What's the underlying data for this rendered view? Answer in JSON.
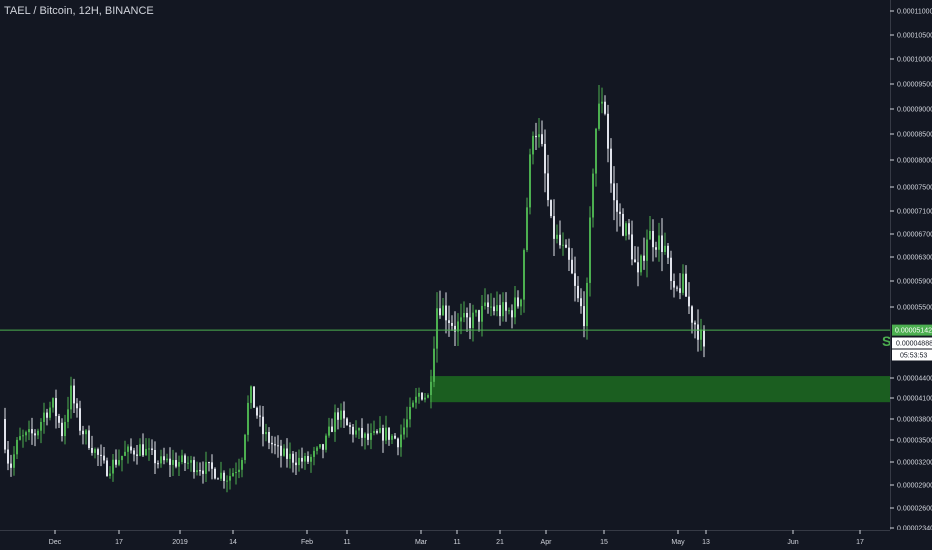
{
  "title": "TAEL / Bitcoin, 12H, BINANCE",
  "colors": {
    "background": "#131722",
    "up": "#4caf50",
    "down": "#e0e3eb",
    "support_line": "#4caf50",
    "zone": "#1b5e20",
    "axis_text": "#d1d4dc",
    "axis_line": "#363a45"
  },
  "chart_data": {
    "type": "candlestick",
    "x_axis": {
      "tick_labels": [
        "Dec",
        "17",
        "2019",
        "14",
        "Feb",
        "11",
        "Mar",
        "11",
        "21",
        "Apr",
        "15",
        "May",
        "13",
        "Jun",
        "17"
      ]
    },
    "y_axis": {
      "range": [
        2.28e-05,
        0.00011
      ],
      "tick_labels": [
        "0.00011000",
        "0.00010500",
        "0.00010000",
        "0.00009500",
        "0.00009000",
        "0.00008500",
        "0.00008000",
        "0.00007500",
        "0.00007100",
        "0.00006700",
        "0.00006300",
        "0.00005900",
        "0.00005500",
        "0.00004400",
        "0.00004100",
        "0.00003800",
        "0.00003500",
        "0.00003200",
        "0.00002900",
        "0.00002600",
        "0.00002340"
      ]
    },
    "support_line": {
      "value": 5.142e-05,
      "label": "0.00005142",
      "marker": "S"
    },
    "current_price": {
      "value": 4.888e-05,
      "label": "0.00004888"
    },
    "countdown": "05:53:53",
    "zone": {
      "low": 4.04e-05,
      "high": 4.43e-05
    },
    "price_keyframes": [
      [
        0.0,
        3.8e-05
      ],
      [
        0.01,
        3.1e-05
      ],
      [
        0.02,
        3.5e-05
      ],
      [
        0.04,
        3.6e-05
      ],
      [
        0.05,
        3.9e-05
      ],
      [
        0.06,
        4e-05
      ],
      [
        0.07,
        3.6e-05
      ],
      [
        0.08,
        4.2e-05
      ],
      [
        0.09,
        3.7e-05
      ],
      [
        0.1,
        3.5e-05
      ],
      [
        0.12,
        3.1e-05
      ],
      [
        0.14,
        3.3e-05
      ],
      [
        0.16,
        3.4e-05
      ],
      [
        0.18,
        3.2e-05
      ],
      [
        0.21,
        3.2e-05
      ],
      [
        0.24,
        3.1e-05
      ],
      [
        0.26,
        3e-05
      ],
      [
        0.275,
        3.2e-05
      ],
      [
        0.285,
        4.2e-05
      ],
      [
        0.3,
        3.6e-05
      ],
      [
        0.32,
        3.3e-05
      ],
      [
        0.35,
        3.2e-05
      ],
      [
        0.37,
        3.4e-05
      ],
      [
        0.385,
        3.9e-05
      ],
      [
        0.395,
        3.7e-05
      ],
      [
        0.42,
        3.5e-05
      ],
      [
        0.44,
        3.6e-05
      ],
      [
        0.455,
        3.5e-05
      ],
      [
        0.47,
        3.9e-05
      ],
      [
        0.48,
        4.2e-05
      ],
      [
        0.49,
        4.1e-05
      ],
      [
        0.5,
        5.6e-05
      ],
      [
        0.51,
        5.4e-05
      ],
      [
        0.52,
        5.2e-05
      ],
      [
        0.54,
        5.3e-05
      ],
      [
        0.56,
        5.5e-05
      ],
      [
        0.58,
        5.4e-05
      ],
      [
        0.595,
        5.6e-05
      ],
      [
        0.61,
        8.8e-05
      ],
      [
        0.62,
        8.1e-05
      ],
      [
        0.63,
        6.8e-05
      ],
      [
        0.65,
        6.2e-05
      ],
      [
        0.66,
        5.6e-05
      ],
      [
        0.67,
        5.3e-05
      ],
      [
        0.68,
        8.5e-05
      ],
      [
        0.69,
        9.4e-05
      ],
      [
        0.7,
        7.3e-05
      ],
      [
        0.72,
        6.6e-05
      ],
      [
        0.73,
        5.9e-05
      ],
      [
        0.74,
        6.7e-05
      ],
      [
        0.76,
        6.5e-05
      ],
      [
        0.77,
        5.6e-05
      ],
      [
        0.78,
        5.9e-05
      ],
      [
        0.79,
        5.4e-05
      ],
      [
        0.8,
        5.1e-05
      ],
      [
        0.805,
        4.9e-05
      ]
    ]
  }
}
